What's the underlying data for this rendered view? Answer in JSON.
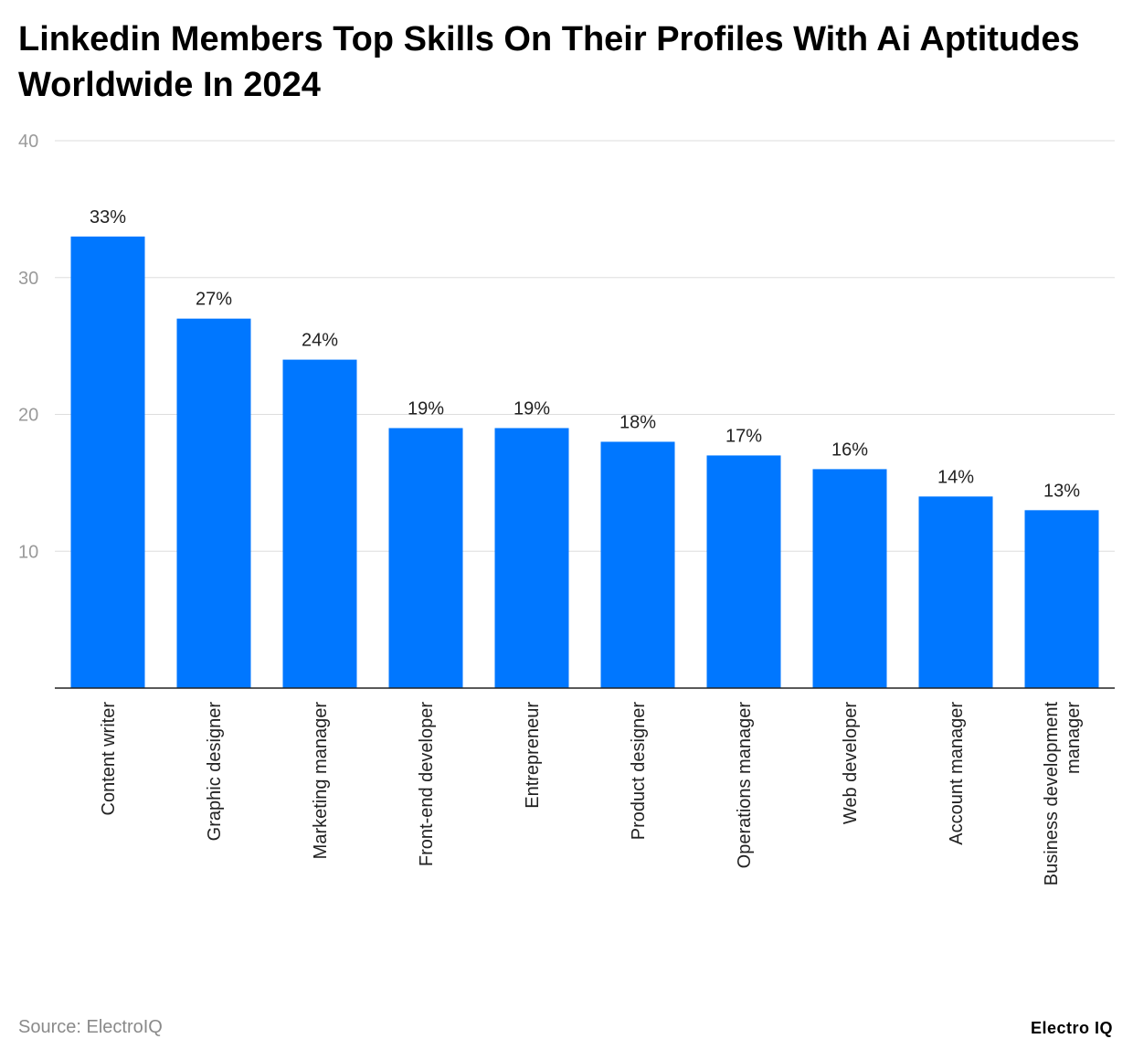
{
  "chart_data": {
    "type": "bar",
    "title": "Linkedin Members Top Skills On Their Profiles With Ai Aptitudes Worldwide In 2024",
    "xlabel": "",
    "ylabel": "",
    "categories": [
      "Content writer",
      "Graphic designer",
      "Marketing manager",
      "Front-end developer",
      "Entrepreneur",
      "Product designer",
      "Operations manager",
      "Web developer",
      "Account manager",
      "Business development manager"
    ],
    "category_lines": [
      [
        "Content writer"
      ],
      [
        "Graphic designer"
      ],
      [
        "Marketing manager"
      ],
      [
        "Front-end developer"
      ],
      [
        "Entrepreneur"
      ],
      [
        "Product designer"
      ],
      [
        "Operations manager"
      ],
      [
        "Web developer"
      ],
      [
        "Account manager"
      ],
      [
        "Business development",
        "manager"
      ]
    ],
    "values": [
      33,
      27,
      24,
      19,
      19,
      18,
      17,
      16,
      14,
      13
    ],
    "value_labels": [
      "33%",
      "27%",
      "24%",
      "19%",
      "19%",
      "18%",
      "17%",
      "16%",
      "14%",
      "13%"
    ],
    "ylim": [
      0,
      40
    ],
    "yticks": [
      10,
      20,
      30,
      40
    ],
    "grid": true,
    "bar_color": "#0077ff"
  },
  "footer": {
    "source": "Source: ElectroIQ",
    "brand": "Electro IQ"
  }
}
